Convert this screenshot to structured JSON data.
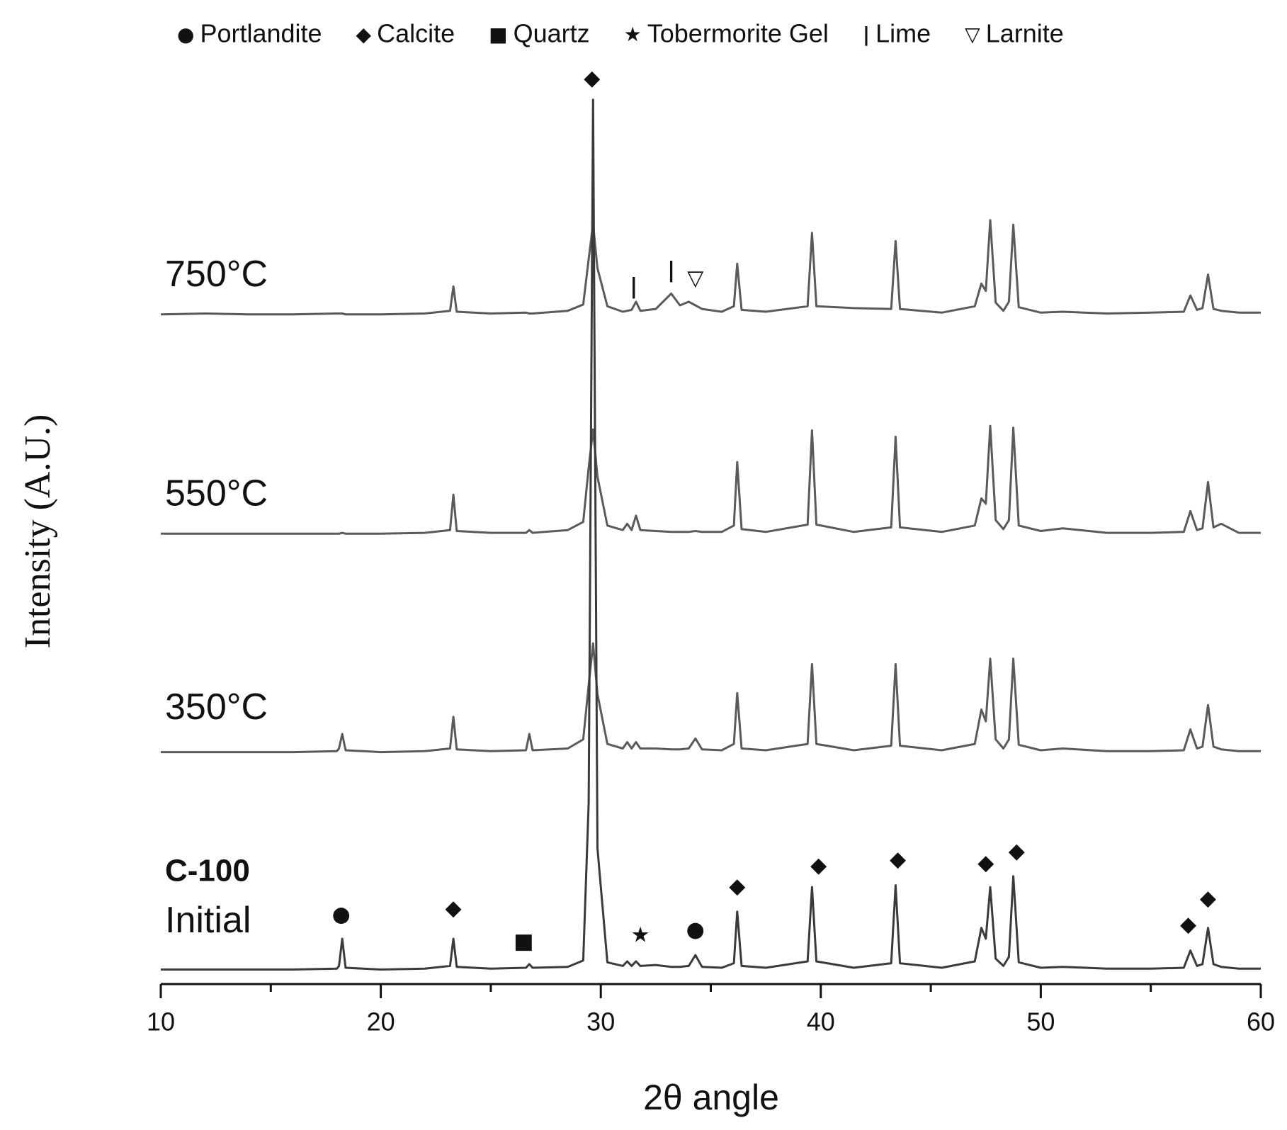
{
  "chart_data": {
    "type": "line",
    "xlabel": "2θ angle",
    "ylabel": "Intensity (A.U.)",
    "xlim": [
      10,
      60
    ],
    "xticks": [
      10,
      20,
      30,
      40,
      50,
      60
    ],
    "xminorticks": [
      15,
      25,
      35,
      45,
      55
    ],
    "ylim": [
      0,
      100
    ],
    "legend": [
      {
        "symbol": "●",
        "label": "Portlandite"
      },
      {
        "symbol": "◆",
        "label": "Calcite"
      },
      {
        "symbol": "■",
        "label": "Quartz"
      },
      {
        "symbol": "★",
        "label": "Tobermorite Gel"
      },
      {
        "symbol": "|",
        "label": "Lime"
      },
      {
        "symbol": "▽",
        "label": "Larnite"
      }
    ],
    "x": [
      10,
      12,
      14,
      16,
      18,
      18.1,
      18.25,
      18.4,
      20,
      22,
      23.15,
      23.3,
      23.45,
      25,
      26.6,
      26.75,
      26.9,
      28.5,
      29.2,
      29.45,
      29.65,
      29.85,
      30.3,
      31.0,
      31.2,
      31.4,
      31.6,
      31.8,
      32.5,
      33.2,
      33.6,
      34.0,
      34.3,
      34.6,
      35.5,
      36.05,
      36.2,
      36.4,
      37.5,
      39.4,
      39.6,
      39.8,
      41.5,
      43.2,
      43.4,
      43.6,
      45.5,
      47.0,
      47.3,
      47.5,
      47.7,
      47.95,
      48.3,
      48.55,
      48.75,
      49.0,
      50.0,
      51.0,
      53,
      55,
      56.5,
      56.8,
      57.1,
      57.35,
      57.6,
      57.85,
      58.2,
      59,
      60
    ],
    "series": [
      {
        "name": "750°C",
        "color": "#5a5a5a",
        "label_y": 78.1,
        "values": [
          73.9,
          74.0,
          73.9,
          73.9,
          74.0,
          74.0,
          74.0,
          73.9,
          73.9,
          74.0,
          74.3,
          77.0,
          74.2,
          74.0,
          74.1,
          74.0,
          74.0,
          74.3,
          75.0,
          80.0,
          83.9,
          79.0,
          74.8,
          74.2,
          74.3,
          74.4,
          75.3,
          74.3,
          74.5,
          76.2,
          74.9,
          75.3,
          74.9,
          74.5,
          74.2,
          74.8,
          79.5,
          74.4,
          74.2,
          74.8,
          82.9,
          74.8,
          74.6,
          74.5,
          82.0,
          74.5,
          74.1,
          74.8,
          77.3,
          76.5,
          84.3,
          75.2,
          74.3,
          75.3,
          83.8,
          74.7,
          74.1,
          74.2,
          74.0,
          74.1,
          74.2,
          76.0,
          74.4,
          74.6,
          78.3,
          74.5,
          74.3,
          74.1,
          74.1
        ]
      },
      {
        "name": "550°C",
        "color": "#5a5a5a",
        "label_y": 53.9,
        "values": [
          49.7,
          49.7,
          49.7,
          49.7,
          49.7,
          49.7,
          49.8,
          49.7,
          49.7,
          49.8,
          50.1,
          54.0,
          50.0,
          49.8,
          49.8,
          50.1,
          49.8,
          50.1,
          51.0,
          57.0,
          61.2,
          56.0,
          50.6,
          50.1,
          50.8,
          50.1,
          51.7,
          50.1,
          50.0,
          49.9,
          49.9,
          49.9,
          50.0,
          49.9,
          49.9,
          50.6,
          57.6,
          50.2,
          49.9,
          50.7,
          61.1,
          50.7,
          49.9,
          50.4,
          60.4,
          50.4,
          49.9,
          50.6,
          53.6,
          53.0,
          61.6,
          51.2,
          50.2,
          51.2,
          61.4,
          50.6,
          50.0,
          50.3,
          49.8,
          49.8,
          49.9,
          52.2,
          50.1,
          50.3,
          55.4,
          50.4,
          50.8,
          49.8,
          49.8
        ]
      },
      {
        "name": "350°C",
        "color": "#5a5a5a",
        "label_y": 30.3,
        "values": [
          25.6,
          25.6,
          25.6,
          25.6,
          25.7,
          26.0,
          27.6,
          25.8,
          25.6,
          25.7,
          26.0,
          29.5,
          25.9,
          25.7,
          25.8,
          27.6,
          25.8,
          26.0,
          27.0,
          33.0,
          37.6,
          32.0,
          26.5,
          26.0,
          26.7,
          26.0,
          26.7,
          26.0,
          26.0,
          25.9,
          25.9,
          26.0,
          27.1,
          25.9,
          25.8,
          26.5,
          32.1,
          26.0,
          25.8,
          26.5,
          35.3,
          26.5,
          25.8,
          26.3,
          35.3,
          26.3,
          25.8,
          26.5,
          30.3,
          29.0,
          35.9,
          27.0,
          26.0,
          27.0,
          35.9,
          26.4,
          25.8,
          26.0,
          25.7,
          25.7,
          25.8,
          28.1,
          26.0,
          26.2,
          30.8,
          26.2,
          25.9,
          25.7,
          25.7
        ]
      },
      {
        "name": "Initial",
        "sample": "C-100",
        "color": "#3a3a3a",
        "label_y": 6.8,
        "sample_y": 12.3,
        "values": [
          1.6,
          1.6,
          1.6,
          1.6,
          1.7,
          2.0,
          5.0,
          1.8,
          1.6,
          1.7,
          2.0,
          5.0,
          1.9,
          1.7,
          1.8,
          2.2,
          1.8,
          1.9,
          2.6,
          20.0,
          97.6,
          15.0,
          2.4,
          2.0,
          2.5,
          2.0,
          2.5,
          2.0,
          2.1,
          1.9,
          1.9,
          2.0,
          3.2,
          1.9,
          1.8,
          2.3,
          8.0,
          2.0,
          1.8,
          2.5,
          10.7,
          2.5,
          1.8,
          2.3,
          10.9,
          2.3,
          1.8,
          2.5,
          6.2,
          5.0,
          10.7,
          2.8,
          2.0,
          3.0,
          11.9,
          2.4,
          1.8,
          1.9,
          1.7,
          1.7,
          1.8,
          3.7,
          2.0,
          2.2,
          6.2,
          2.2,
          1.9,
          1.7,
          1.7
        ]
      }
    ],
    "markers": [
      {
        "symbol": "◆",
        "x": 29.6,
        "y": 99.9
      },
      {
        "symbol": "●",
        "x": 18.2,
        "y": 7.6
      },
      {
        "symbol": "◆",
        "x": 23.3,
        "y": 8.3
      },
      {
        "symbol": "■",
        "x": 26.5,
        "y": 4.6
      },
      {
        "symbol": "★",
        "x": 31.8,
        "y": 5.3
      },
      {
        "symbol": "●",
        "x": 34.3,
        "y": 5.9
      },
      {
        "symbol": "◆",
        "x": 36.2,
        "y": 10.7
      },
      {
        "symbol": "◆",
        "x": 39.9,
        "y": 13.0
      },
      {
        "symbol": "◆",
        "x": 43.5,
        "y": 13.7
      },
      {
        "symbol": "◆",
        "x": 47.5,
        "y": 13.3
      },
      {
        "symbol": "◆",
        "x": 48.9,
        "y": 14.6
      },
      {
        "symbol": "◆",
        "x": 56.7,
        "y": 6.5
      },
      {
        "symbol": "◆",
        "x": 57.6,
        "y": 9.4
      },
      {
        "symbol": "|",
        "x": 31.5,
        "y": 76.9
      },
      {
        "symbol": "|",
        "x": 33.2,
        "y": 78.7
      },
      {
        "symbol": "▽",
        "x": 34.3,
        "y": 77.8
      }
    ]
  }
}
